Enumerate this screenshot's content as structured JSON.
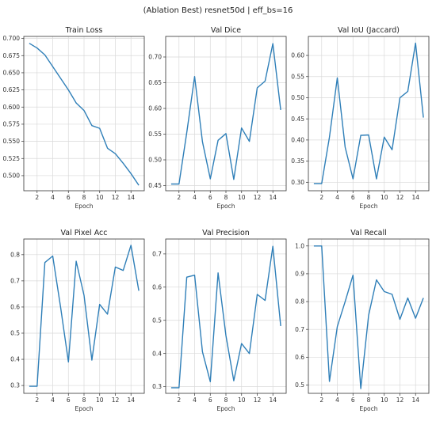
{
  "suptitle": "(Ablation Best) resnet50d | eff_bs=16",
  "line_color": "#2f7fb8",
  "chart_data": [
    {
      "type": "line",
      "title": "Train Loss",
      "xlabel": "Epoch",
      "ylabel": "",
      "x": [
        1,
        2,
        3,
        4,
        5,
        6,
        7,
        8,
        9,
        10,
        11,
        12,
        13,
        14,
        15
      ],
      "values": [
        0.693,
        0.686,
        0.676,
        0.659,
        0.642,
        0.625,
        0.606,
        0.595,
        0.573,
        0.569,
        0.54,
        0.532,
        0.518,
        0.503,
        0.486
      ],
      "xticks": [
        2,
        4,
        6,
        8,
        10,
        12,
        14
      ],
      "xlim": [
        0.3,
        15.7
      ],
      "yticks": [
        0.5,
        0.525,
        0.55,
        0.575,
        0.6,
        0.625,
        0.65,
        0.675,
        0.7
      ],
      "ytick_labels": [
        "0.500",
        "0.525",
        "0.550",
        "0.575",
        "0.600",
        "0.625",
        "0.650",
        "0.675",
        "0.700"
      ],
      "ylim": [
        0.478,
        0.703
      ],
      "grid": true
    },
    {
      "type": "line",
      "title": "Val Dice",
      "xlabel": "Epoch",
      "ylabel": "",
      "x": [
        1,
        2,
        3,
        4,
        5,
        6,
        7,
        8,
        9,
        10,
        11,
        12,
        13,
        14,
        15
      ],
      "values": [
        0.453,
        0.453,
        0.553,
        0.662,
        0.535,
        0.463,
        0.538,
        0.551,
        0.462,
        0.562,
        0.536,
        0.64,
        0.653,
        0.726,
        0.597
      ],
      "xticks": [
        2,
        4,
        6,
        8,
        10,
        12,
        14
      ],
      "xlim": [
        0.3,
        15.7
      ],
      "yticks": [
        0.45,
        0.5,
        0.55,
        0.6,
        0.65,
        0.7
      ],
      "ytick_labels": [
        "0.45",
        "0.50",
        "0.55",
        "0.60",
        "0.65",
        "0.70"
      ],
      "ylim": [
        0.44,
        0.74
      ],
      "grid": true
    },
    {
      "type": "line",
      "title": "Val IoU (Jaccard)",
      "xlabel": "Epoch",
      "ylabel": "",
      "x": [
        1,
        2,
        3,
        4,
        5,
        6,
        7,
        8,
        9,
        10,
        11,
        12,
        13,
        14,
        15
      ],
      "values": [
        0.297,
        0.297,
        0.407,
        0.547,
        0.383,
        0.308,
        0.411,
        0.412,
        0.308,
        0.407,
        0.377,
        0.5,
        0.515,
        0.629,
        0.453
      ],
      "xticks": [
        2,
        4,
        6,
        8,
        10,
        12,
        14
      ],
      "xlim": [
        0.3,
        15.7
      ],
      "yticks": [
        0.3,
        0.35,
        0.4,
        0.45,
        0.5,
        0.55,
        0.6
      ],
      "ytick_labels": [
        "0.30",
        "0.35",
        "0.40",
        "0.45",
        "0.50",
        "0.55",
        "0.60"
      ],
      "ylim": [
        0.28,
        0.645
      ],
      "grid": true
    },
    {
      "type": "line",
      "title": "Val Pixel Acc",
      "xlabel": "Epoch",
      "ylabel": "",
      "x": [
        1,
        2,
        3,
        4,
        5,
        6,
        7,
        8,
        9,
        10,
        11,
        12,
        13,
        14,
        15
      ],
      "values": [
        0.297,
        0.297,
        0.77,
        0.795,
        0.6,
        0.39,
        0.775,
        0.645,
        0.397,
        0.61,
        0.573,
        0.753,
        0.74,
        0.836,
        0.662
      ],
      "xticks": [
        2,
        4,
        6,
        8,
        10,
        12,
        14
      ],
      "xlim": [
        0.3,
        15.7
      ],
      "yticks": [
        0.3,
        0.4,
        0.5,
        0.6,
        0.7,
        0.8
      ],
      "ytick_labels": [
        "0.3",
        "0.4",
        "0.5",
        "0.6",
        "0.7",
        "0.8"
      ],
      "ylim": [
        0.27,
        0.86
      ],
      "grid": true
    },
    {
      "type": "line",
      "title": "Val Precision",
      "xlabel": "Epoch",
      "ylabel": "",
      "x": [
        1,
        2,
        3,
        4,
        5,
        6,
        7,
        8,
        9,
        10,
        11,
        12,
        13,
        14,
        15
      ],
      "values": [
        0.297,
        0.297,
        0.63,
        0.636,
        0.405,
        0.315,
        0.643,
        0.454,
        0.318,
        0.43,
        0.4,
        0.578,
        0.56,
        0.723,
        0.483
      ],
      "xticks": [
        2,
        4,
        6,
        8,
        10,
        12,
        14
      ],
      "xlim": [
        0.3,
        15.7
      ],
      "yticks": [
        0.3,
        0.4,
        0.5,
        0.6,
        0.7
      ],
      "ytick_labels": [
        "0.3",
        "0.4",
        "0.5",
        "0.6",
        "0.7"
      ],
      "ylim": [
        0.28,
        0.745
      ],
      "grid": true
    },
    {
      "type": "line",
      "title": "Val Recall",
      "xlabel": "Epoch",
      "ylabel": "",
      "x": [
        1,
        2,
        3,
        4,
        5,
        6,
        7,
        8,
        9,
        10,
        11,
        12,
        13,
        14,
        15
      ],
      "values": [
        1.0,
        1.0,
        0.513,
        0.71,
        0.8,
        0.895,
        0.487,
        0.751,
        0.878,
        0.836,
        0.826,
        0.736,
        0.813,
        0.74,
        0.813
      ],
      "xticks": [
        2,
        4,
        6,
        8,
        10,
        12,
        14
      ],
      "xlim": [
        0.3,
        15.7
      ],
      "yticks": [
        0.5,
        0.6,
        0.7,
        0.8,
        0.9,
        1.0
      ],
      "ytick_labels": [
        "0.5",
        "0.6",
        "0.7",
        "0.8",
        "0.9",
        "1.0"
      ],
      "ylim": [
        0.47,
        1.025
      ],
      "grid": true
    }
  ]
}
